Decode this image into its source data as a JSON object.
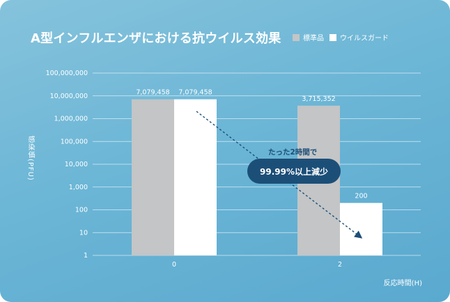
{
  "title": "A型インフルエンザにおける抗ウイルス効果",
  "legend": [
    {
      "label": "標準品",
      "color": "#c3c5c6"
    },
    {
      "label": "ウイルスガード",
      "color": "#ffffff"
    }
  ],
  "annotation": {
    "caption": "たった2時間で",
    "badge": "99.99%以上減少"
  },
  "chart_data": {
    "type": "bar",
    "title": "A型インフルエンザにおける抗ウイルス効果",
    "xlabel": "反応時間(H)",
    "ylabel": "感染価(PFU)",
    "yscale": "log",
    "ylim": [
      1,
      100000000
    ],
    "yticks": [
      1,
      10,
      100,
      1000,
      10000,
      100000,
      1000000,
      10000000,
      100000000
    ],
    "ytick_labels": [
      "1",
      "10",
      "100",
      "1,000",
      "10,000",
      "100,000",
      "1,000,000",
      "10,000,000",
      "100,000,000"
    ],
    "categories": [
      "0",
      "2"
    ],
    "grid": true,
    "legend_position": "top-right",
    "series": [
      {
        "name": "標準品",
        "color": "#c3c5c6",
        "values": [
          7079458,
          3715352
        ],
        "labels": [
          "7,079,458",
          "3,715,352"
        ]
      },
      {
        "name": "ウイルスガード",
        "color": "#ffffff",
        "values": [
          7079458,
          200
        ],
        "labels": [
          "7,079,458",
          "200"
        ]
      }
    ]
  }
}
